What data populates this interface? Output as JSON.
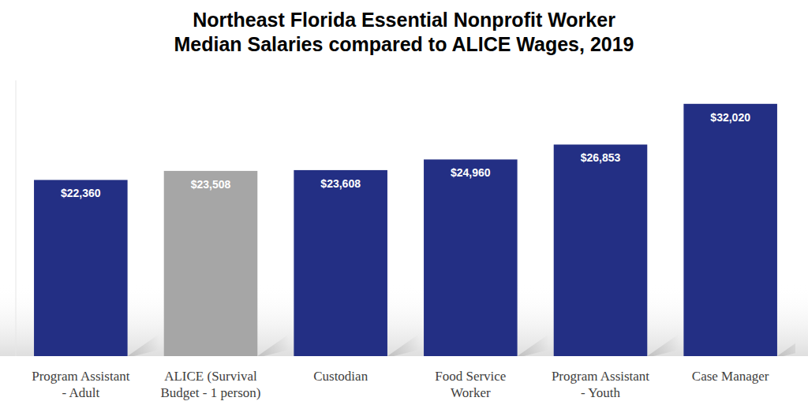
{
  "chart_data": {
    "type": "bar",
    "title": "Northeast Florida Essential Nonprofit Worker\nMedian Salaries compared to ALICE Wages, 2019",
    "categories": [
      "Program Assistant\n- Adult",
      "ALICE (Survival\nBudget - 1 person)",
      "Custodian",
      "Food Service\nWorker",
      "Program Assistant\n- Youth",
      "Case Manager"
    ],
    "values": [
      22360,
      23508,
      23608,
      24960,
      26853,
      32020
    ],
    "value_labels": [
      "$22,360",
      "$23,508",
      "$23,608",
      "$24,960",
      "$26,853",
      "$32,020"
    ],
    "colors": [
      "#232f84",
      "#a6a6a6",
      "#232f84",
      "#232f84",
      "#232f84",
      "#232f84"
    ],
    "ylim": [
      0,
      35000
    ],
    "data_labels": true,
    "tick_labels": "x",
    "grid": false
  }
}
